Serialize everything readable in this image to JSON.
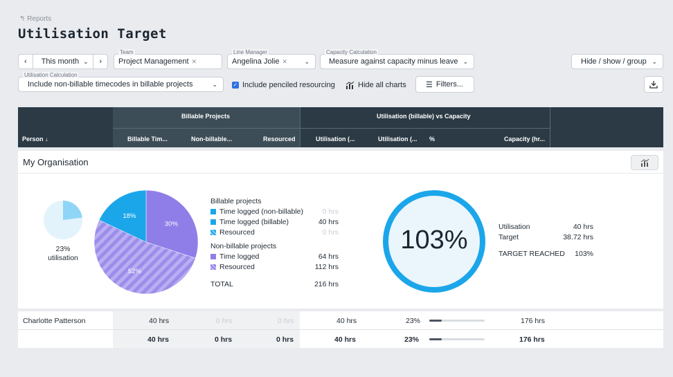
{
  "breadcrumb": "Reports",
  "page_title": "Utilisation Target",
  "filters": {
    "period": "This month",
    "team_label": "Team",
    "team_value": "Project Management",
    "manager_label": "Line Manager",
    "manager_value": "Angelina Jolie",
    "capacity_label": "Capacity Calculation",
    "capacity_value": "Measure against capacity minus leave",
    "hide_show_group": "Hide / show / group",
    "util_calc_label": "Utilisation Calculation",
    "util_calc_value": "Include non-billable timecodes in billable projects",
    "penciled_label": "Include penciled resourcing",
    "hide_charts": "Hide all charts",
    "filters_button": "Filters..."
  },
  "table": {
    "group_billable": "Billable Projects",
    "group_utilisation": "Utilisation (billable) vs Capacity",
    "columns": [
      "Person",
      "Billable Tim...",
      "Non-billable...",
      "Resourced",
      "Utilisation (...",
      "Utilisation (...",
      "%",
      "Capacity (hr..."
    ]
  },
  "organisation": {
    "name": "My Organisation",
    "small_pie": {
      "fraction": 0.23,
      "label_pct": "23%",
      "label_text": "utilisation"
    },
    "pie": {
      "slices": [
        {
          "name": "Time logged (billable)",
          "fraction": 0.18,
          "label": "18%",
          "color": "#1ba6ea"
        },
        {
          "name": "Time logged",
          "fraction": 0.3,
          "label": "30%",
          "color": "#8f7ee8"
        },
        {
          "name": "Resourced",
          "fraction": 0.52,
          "label": "52%",
          "color": "#9a8cea"
        }
      ]
    },
    "legend": {
      "billable_heading": "Billable projects",
      "nonbillable_heading": "Non-billable projects",
      "items_billable": [
        {
          "label": "Time logged (non-billable)",
          "value": "0 hrs",
          "muted": true
        },
        {
          "label": "Time logged (billable)",
          "value": "40 hrs",
          "muted": false
        },
        {
          "label": "Resourced",
          "value": "0 hrs",
          "muted": true
        }
      ],
      "items_nonbillable": [
        {
          "label": "Time logged",
          "value": "64 hrs"
        },
        {
          "label": "Resourced",
          "value": "112 hrs"
        }
      ],
      "total_label": "TOTAL",
      "total_value": "216 hrs"
    },
    "ring": {
      "value": "103%",
      "fraction": 1.0,
      "color": "#1ba6ea"
    },
    "stats": {
      "utilisation_label": "Utilisation",
      "utilisation_value": "40 hrs",
      "target_label": "Target",
      "target_value": "38.72 hrs",
      "reached_label": "TARGET REACHED",
      "reached_value": "103%"
    }
  },
  "rows": [
    {
      "person": "Charlotte Patterson",
      "billable_time": "40 hrs",
      "non_billable": "0 hrs",
      "resourced": "0 hrs",
      "utilisation_a": "40 hrs",
      "utilisation_b": "23%",
      "pct_fraction": 0.23,
      "capacity": "176 hrs"
    }
  ],
  "totals": {
    "billable_time": "40 hrs",
    "non_billable": "0 hrs",
    "resourced": "0 hrs",
    "utilisation_a": "40 hrs",
    "utilisation_b": "23%",
    "pct_fraction": 0.23,
    "capacity": "176 hrs"
  }
}
